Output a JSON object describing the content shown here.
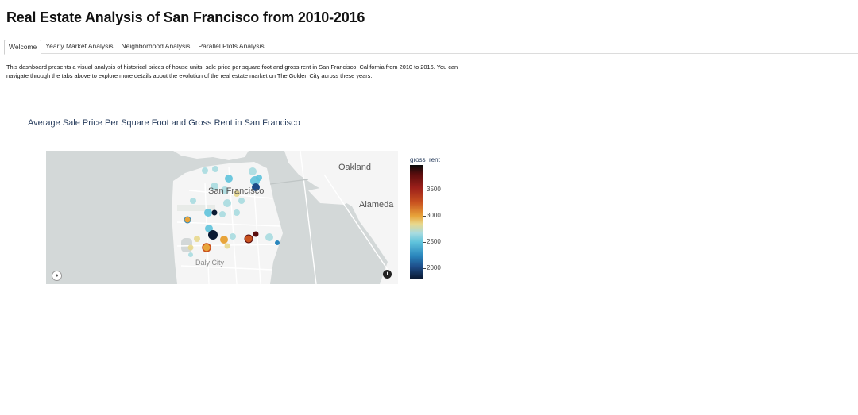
{
  "page": {
    "title": "Real Estate Analysis of San Francisco from 2010-2016",
    "tabs": [
      {
        "label": "Welcome",
        "active": true
      },
      {
        "label": "Yearly Market Analysis",
        "active": false
      },
      {
        "label": "Neighborhood Analysis",
        "active": false
      },
      {
        "label": "Parallel Plots Analysis",
        "active": false
      }
    ],
    "intro": "This dashboard presents a visual analysis of historical prices of house units, sale price per square foot and gross rent in San Francisco, California from 2010 to 2016. You can navigate through the tabs above to explore more details about the evolution of the real estate market on The Golden City across these years."
  },
  "map": {
    "title": "Average Sale Price Per Square Foot and Gross Rent in San Francisco",
    "labels": {
      "san_francisco": "San Francisco",
      "oakland": "Oakland",
      "alameda": "Alameda",
      "daly_city": "Daly City"
    },
    "colorbar": {
      "title": "gross_rent",
      "ticks": [
        "3500",
        "3000",
        "2500",
        "2000"
      ]
    },
    "colors": {
      "water": "#d3d8d8",
      "land": "#f5f5f5"
    }
  }
}
